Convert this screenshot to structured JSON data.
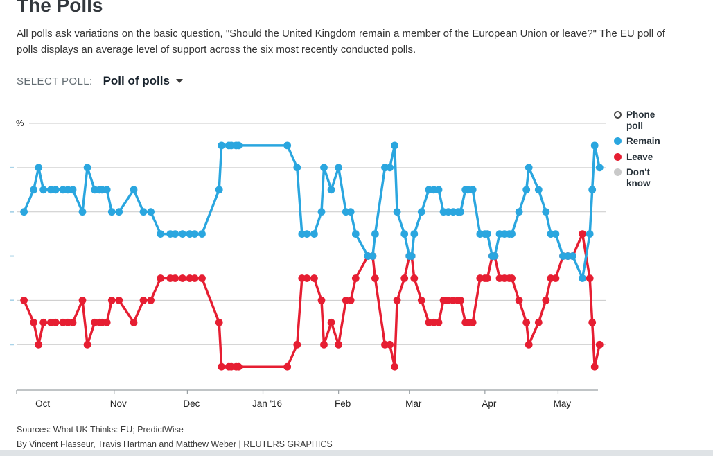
{
  "page": {
    "title": "The Polls",
    "description_lines": [
      "All polls ask variations on the basic question, \"Should the United Kingdom remain a member of the European Union or leave?\" The EU poll of",
      "polls displays an average level of support across the six most recently conducted polls."
    ]
  },
  "poll_selector": {
    "label": "SELECT POLL:",
    "value": "Poll of polls"
  },
  "legend": {
    "items": [
      {
        "id": "phone-poll",
        "label": "Phone poll",
        "swatch": "open",
        "color": "#ffffff",
        "border": "#4a4a4a"
      },
      {
        "id": "remain",
        "label": "Remain",
        "swatch": "filled",
        "color": "#2aa6df"
      },
      {
        "id": "leave",
        "label": "Leave",
        "swatch": "filled",
        "color": "#e61e32"
      },
      {
        "id": "dont-know",
        "label": "Don't know",
        "swatch": "filled",
        "color": "#c9c9c9"
      }
    ]
  },
  "footer": {
    "sources": "Sources: What UK Thinks: EU; PredictWise",
    "byline": "By Vincent Flasseur, Travis Hartman and Matthew Weber | REUTERS GRAPHICS"
  },
  "chart_data": {
    "type": "line",
    "title": "",
    "y_axis": {
      "unit_label": "%",
      "gridline_values": [
        55,
        50,
        45,
        40,
        35,
        30
      ],
      "ylim": [
        25,
        57
      ],
      "numeric_labels_visible": false
    },
    "x_axis": {
      "tick_dates": [
        "2015-09-22",
        "2015-11-01",
        "2015-12-01",
        "2016-01-01",
        "2016-02-01",
        "2016-03-01",
        "2016-04-01",
        "2016-05-01"
      ],
      "month_labels": [
        {
          "text": "Oct",
          "date": "2015-10-01"
        },
        {
          "text": "Nov",
          "date": "2015-11-01"
        },
        {
          "text": "Dec",
          "date": "2015-12-01"
        },
        {
          "text": "Jan '16",
          "date": "2016-01-01"
        },
        {
          "text": "Feb",
          "date": "2016-02-01"
        },
        {
          "text": "Mar",
          "date": "2016-03-01"
        },
        {
          "text": "Apr",
          "date": "2016-04-01"
        },
        {
          "text": "May",
          "date": "2016-05-01"
        }
      ]
    },
    "dates": [
      "2015-09-25",
      "2015-09-29",
      "2015-10-01",
      "2015-10-03",
      "2015-10-06",
      "2015-10-08",
      "2015-10-11",
      "2015-10-13",
      "2015-10-15",
      "2015-10-19",
      "2015-10-21",
      "2015-10-24",
      "2015-10-26",
      "2015-10-27",
      "2015-10-29",
      "2015-10-31",
      "2015-11-03",
      "2015-11-09",
      "2015-11-13",
      "2015-11-16",
      "2015-11-20",
      "2015-11-24",
      "2015-11-26",
      "2015-11-29",
      "2015-12-02",
      "2015-12-04",
      "2015-12-07",
      "2015-12-14",
      "2015-12-15",
      "2015-12-18",
      "2015-12-19",
      "2015-12-21",
      "2015-12-22",
      "2016-01-11",
      "2016-01-15",
      "2016-01-17",
      "2016-01-19",
      "2016-01-22",
      "2016-01-25",
      "2016-01-26",
      "2016-01-29",
      "2016-02-01",
      "2016-02-04",
      "2016-02-06",
      "2016-02-08",
      "2016-02-13",
      "2016-02-15",
      "2016-02-16",
      "2016-02-20",
      "2016-02-22",
      "2016-02-24",
      "2016-02-25",
      "2016-02-28",
      "2016-03-01",
      "2016-03-02",
      "2016-03-03",
      "2016-03-06",
      "2016-03-09",
      "2016-03-11",
      "2016-03-13",
      "2016-03-15",
      "2016-03-17",
      "2016-03-19",
      "2016-03-21",
      "2016-03-22",
      "2016-03-24",
      "2016-03-25",
      "2016-03-27",
      "2016-03-30",
      "2016-04-01",
      "2016-04-02",
      "2016-04-04",
      "2016-04-05",
      "2016-04-07",
      "2016-04-09",
      "2016-04-11",
      "2016-04-12",
      "2016-04-15",
      "2016-04-18",
      "2016-04-19",
      "2016-04-23",
      "2016-04-26",
      "2016-04-28",
      "2016-04-30",
      "2016-05-03",
      "2016-05-05",
      "2016-05-07",
      "2016-05-11",
      "2016-05-14",
      "2016-05-15",
      "2016-05-16",
      "2016-05-18"
    ],
    "series": [
      {
        "name": "Remain",
        "color": "#2aa6df",
        "values": [
          45,
          47.5,
          50,
          47.5,
          47.5,
          47.5,
          47.5,
          47.5,
          47.5,
          45,
          50,
          47.5,
          47.5,
          47.5,
          47.5,
          45,
          45,
          47.5,
          45,
          45,
          42.5,
          42.5,
          42.5,
          42.5,
          42.5,
          42.5,
          42.5,
          47.5,
          52.5,
          52.5,
          52.5,
          52.5,
          52.5,
          52.5,
          50,
          42.5,
          42.5,
          42.5,
          45,
          50,
          47.5,
          50,
          45,
          45,
          42.5,
          40,
          40,
          42.5,
          50,
          50,
          52.5,
          45,
          42.5,
          40,
          40,
          42.5,
          45,
          47.5,
          47.5,
          47.5,
          45,
          45,
          45,
          45,
          45,
          47.5,
          47.5,
          47.5,
          42.5,
          42.5,
          42.5,
          40,
          40,
          42.5,
          42.5,
          42.5,
          42.5,
          45,
          47.5,
          50,
          47.5,
          45,
          42.5,
          42.5,
          40,
          40,
          40,
          37.5,
          42.5,
          47.5,
          52.5,
          50
        ]
      },
      {
        "name": "Leave",
        "color": "#e61e32",
        "values": [
          35,
          32.5,
          30,
          32.5,
          32.5,
          32.5,
          32.5,
          32.5,
          32.5,
          35,
          30,
          32.5,
          32.5,
          32.5,
          32.5,
          35,
          35,
          32.5,
          35,
          35,
          37.5,
          37.5,
          37.5,
          37.5,
          37.5,
          37.5,
          37.5,
          32.5,
          27.5,
          27.5,
          27.5,
          27.5,
          27.5,
          27.5,
          30,
          37.5,
          37.5,
          37.5,
          35,
          30,
          32.5,
          30,
          35,
          35,
          37.5,
          40,
          40,
          37.5,
          30,
          30,
          27.5,
          35,
          37.5,
          40,
          40,
          37.5,
          35,
          32.5,
          32.5,
          32.5,
          35,
          35,
          35,
          35,
          35,
          32.5,
          32.5,
          32.5,
          37.5,
          37.5,
          37.5,
          40,
          40,
          37.5,
          37.5,
          37.5,
          37.5,
          35,
          32.5,
          30,
          32.5,
          35,
          37.5,
          37.5,
          40,
          40,
          40,
          42.5,
          37.5,
          32.5,
          27.5,
          30
        ]
      }
    ],
    "legend_position": "right",
    "grid": true,
    "colors": {
      "gridline": "#c9c9c9",
      "axis": "#9aa0a4",
      "y_tick": "#a9d3e8",
      "label": "#222222"
    }
  }
}
